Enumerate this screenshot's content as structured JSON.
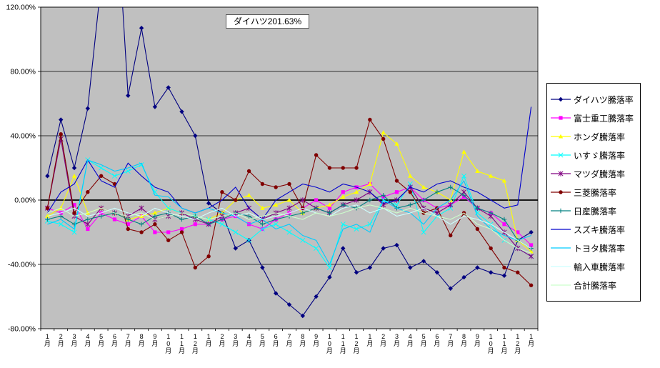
{
  "chart_data": {
    "type": "line",
    "title": "",
    "xlabel": "",
    "ylabel": "",
    "annotation": "ダイハツ201.63%",
    "ylim": [
      -80,
      120
    ],
    "grid": "on",
    "legend_position": "right",
    "plot_bg": "#C0C0C0",
    "y_ticks": [
      "120.00%",
      "80.00%",
      "40.00%",
      "0.00%",
      "-40.00%",
      "-80.00%"
    ],
    "y_tick_values": [
      120,
      80,
      40,
      0,
      -40,
      -80
    ],
    "categories": [
      "1月",
      "2月",
      "3月",
      "4月",
      "5月",
      "6月",
      "7月",
      "8月",
      "9月",
      "10月",
      "11月",
      "12月",
      "1月",
      "2月",
      "3月",
      "4月",
      "5月",
      "6月",
      "7月",
      "8月",
      "9月",
      "10月",
      "11月",
      "12月",
      "1月",
      "2月",
      "3月",
      "4月",
      "5月",
      "6月",
      "7月",
      "8月",
      "9月",
      "10月",
      "11月",
      "12月",
      "1月"
    ],
    "series": [
      {
        "name": "ダイハツ騰落率",
        "slug": "daihatsu",
        "color": "#000080",
        "marker": "diamond",
        "values": [
          15,
          50,
          20,
          57,
          135,
          202,
          65,
          107,
          58,
          70,
          55,
          40,
          -2,
          -8,
          -30,
          -25,
          -42,
          -58,
          -65,
          -72,
          -60,
          -48,
          -30,
          -45,
          -42,
          -30,
          -28,
          -42,
          -38,
          -45,
          -55,
          -48,
          -42,
          -45,
          -47,
          -25,
          -20
        ]
      },
      {
        "name": "富士重工騰落率",
        "slug": "fuji-heavy",
        "color": "#FF00FF",
        "marker": "square",
        "values": [
          -5,
          -8,
          -3,
          -18,
          -8,
          -12,
          -15,
          -10,
          -20,
          -20,
          -18,
          -15,
          -15,
          -12,
          -10,
          -15,
          -18,
          -12,
          -8,
          -5,
          0,
          -5,
          5,
          8,
          10,
          2,
          5,
          8,
          0,
          -5,
          -3,
          2,
          -5,
          -8,
          -15,
          -20,
          -28
        ]
      },
      {
        "name": "ホンダ騰落率",
        "slug": "honda",
        "color": "#FFFF00",
        "marker": "triangle",
        "values": [
          -10,
          -5,
          15,
          -8,
          -5,
          -8,
          -12,
          -10,
          -8,
          -5,
          -8,
          -10,
          -12,
          -8,
          0,
          3,
          -5,
          -3,
          0,
          -8,
          -5,
          -3,
          2,
          5,
          10,
          42,
          35,
          15,
          8,
          5,
          0,
          30,
          18,
          15,
          12,
          -25,
          -32
        ]
      },
      {
        "name": "いすゞ騰落率",
        "slug": "isuzu",
        "color": "#00FFFF",
        "marker": "x",
        "values": [
          -13,
          -15,
          -20,
          25,
          20,
          15,
          18,
          22,
          5,
          -5,
          -8,
          -10,
          -12,
          -15,
          -20,
          -25,
          -18,
          -15,
          -20,
          -25,
          -30,
          -42,
          -15,
          -18,
          -15,
          0,
          -3,
          10,
          -20,
          -10,
          -5,
          15,
          -8,
          -15,
          -25,
          -30,
          -35
        ]
      },
      {
        "name": "マツダ騰落率",
        "slug": "mazda",
        "color": "#800080",
        "marker": "asterisk",
        "values": [
          -5,
          38,
          -10,
          -15,
          -5,
          -8,
          -10,
          -5,
          -12,
          -10,
          -8,
          -12,
          -15,
          -10,
          -8,
          -5,
          -12,
          -8,
          -5,
          0,
          -5,
          -8,
          -3,
          0,
          5,
          -3,
          0,
          8,
          -5,
          -8,
          -3,
          5,
          -5,
          -10,
          -20,
          -30,
          -35
        ]
      },
      {
        "name": "三菱騰落率",
        "slug": "mitsubishi",
        "color": "#800000",
        "marker": "circle",
        "values": [
          -5,
          41,
          -8,
          5,
          15,
          10,
          -18,
          -20,
          -15,
          -25,
          -20,
          -42,
          -35,
          5,
          0,
          18,
          10,
          8,
          10,
          -5,
          28,
          20,
          20,
          20,
          50,
          38,
          12,
          5,
          -8,
          -5,
          -22,
          -8,
          -18,
          -30,
          -42,
          -45,
          -53
        ]
      },
      {
        "name": "日産騰落率",
        "slug": "nissan",
        "color": "#008080",
        "marker": "plus",
        "values": [
          -12,
          -10,
          -15,
          -12,
          -10,
          -8,
          -12,
          -15,
          -10,
          -8,
          -12,
          -10,
          -15,
          -12,
          -8,
          -10,
          -15,
          -12,
          -10,
          -8,
          -5,
          -8,
          -3,
          -5,
          0,
          3,
          -5,
          -3,
          0,
          5,
          8,
          3,
          -5,
          -8,
          -12,
          -25,
          -30
        ]
      },
      {
        "name": "スズキ騰落率",
        "slug": "suzuki",
        "color": "#0000CC",
        "marker": "none",
        "values": [
          -8,
          5,
          10,
          25,
          12,
          8,
          23,
          15,
          8,
          5,
          -5,
          -8,
          -5,
          0,
          8,
          -5,
          -12,
          0,
          5,
          10,
          8,
          5,
          10,
          8,
          5,
          -2,
          0,
          8,
          5,
          10,
          12,
          8,
          5,
          0,
          -5,
          -3,
          58
        ]
      },
      {
        "name": "トヨタ騰落率",
        "slug": "toyota",
        "color": "#00CCFF",
        "marker": "none",
        "values": [
          -15,
          -12,
          -18,
          25,
          22,
          18,
          20,
          23,
          3,
          2,
          -5,
          -8,
          -5,
          -8,
          -10,
          -15,
          -12,
          -18,
          -15,
          -22,
          -25,
          -40,
          -18,
          -15,
          -20,
          0,
          -5,
          -8,
          -15,
          -5,
          0,
          12,
          -10,
          -18,
          -22,
          -25,
          -22
        ]
      },
      {
        "name": "輸入車騰落率",
        "slug": "imported",
        "color": "#CCFFFF",
        "marker": "none",
        "values": [
          -10,
          -8,
          -5,
          -10,
          -8,
          -5,
          -8,
          -10,
          -5,
          -8,
          -10,
          -12,
          -8,
          -5,
          -10,
          -8,
          -12,
          -10,
          -8,
          -5,
          -8,
          -10,
          -5,
          -3,
          -8,
          -5,
          -10,
          -8,
          -5,
          -10,
          -15,
          -10,
          -12,
          -15,
          -20,
          -25,
          -30
        ]
      },
      {
        "name": "合計騰落率",
        "slug": "total",
        "color": "#CCFFCC",
        "marker": "none",
        "values": [
          -8,
          -5,
          -10,
          -8,
          -5,
          -8,
          -10,
          -8,
          -12,
          -10,
          -8,
          -10,
          -12,
          -10,
          -8,
          -12,
          -10,
          -8,
          -10,
          -12,
          -8,
          -10,
          -8,
          -5,
          -3,
          -5,
          -8,
          -5,
          -8,
          -10,
          -12,
          -8,
          -15,
          -18,
          -25,
          -30,
          -33
        ]
      }
    ]
  }
}
